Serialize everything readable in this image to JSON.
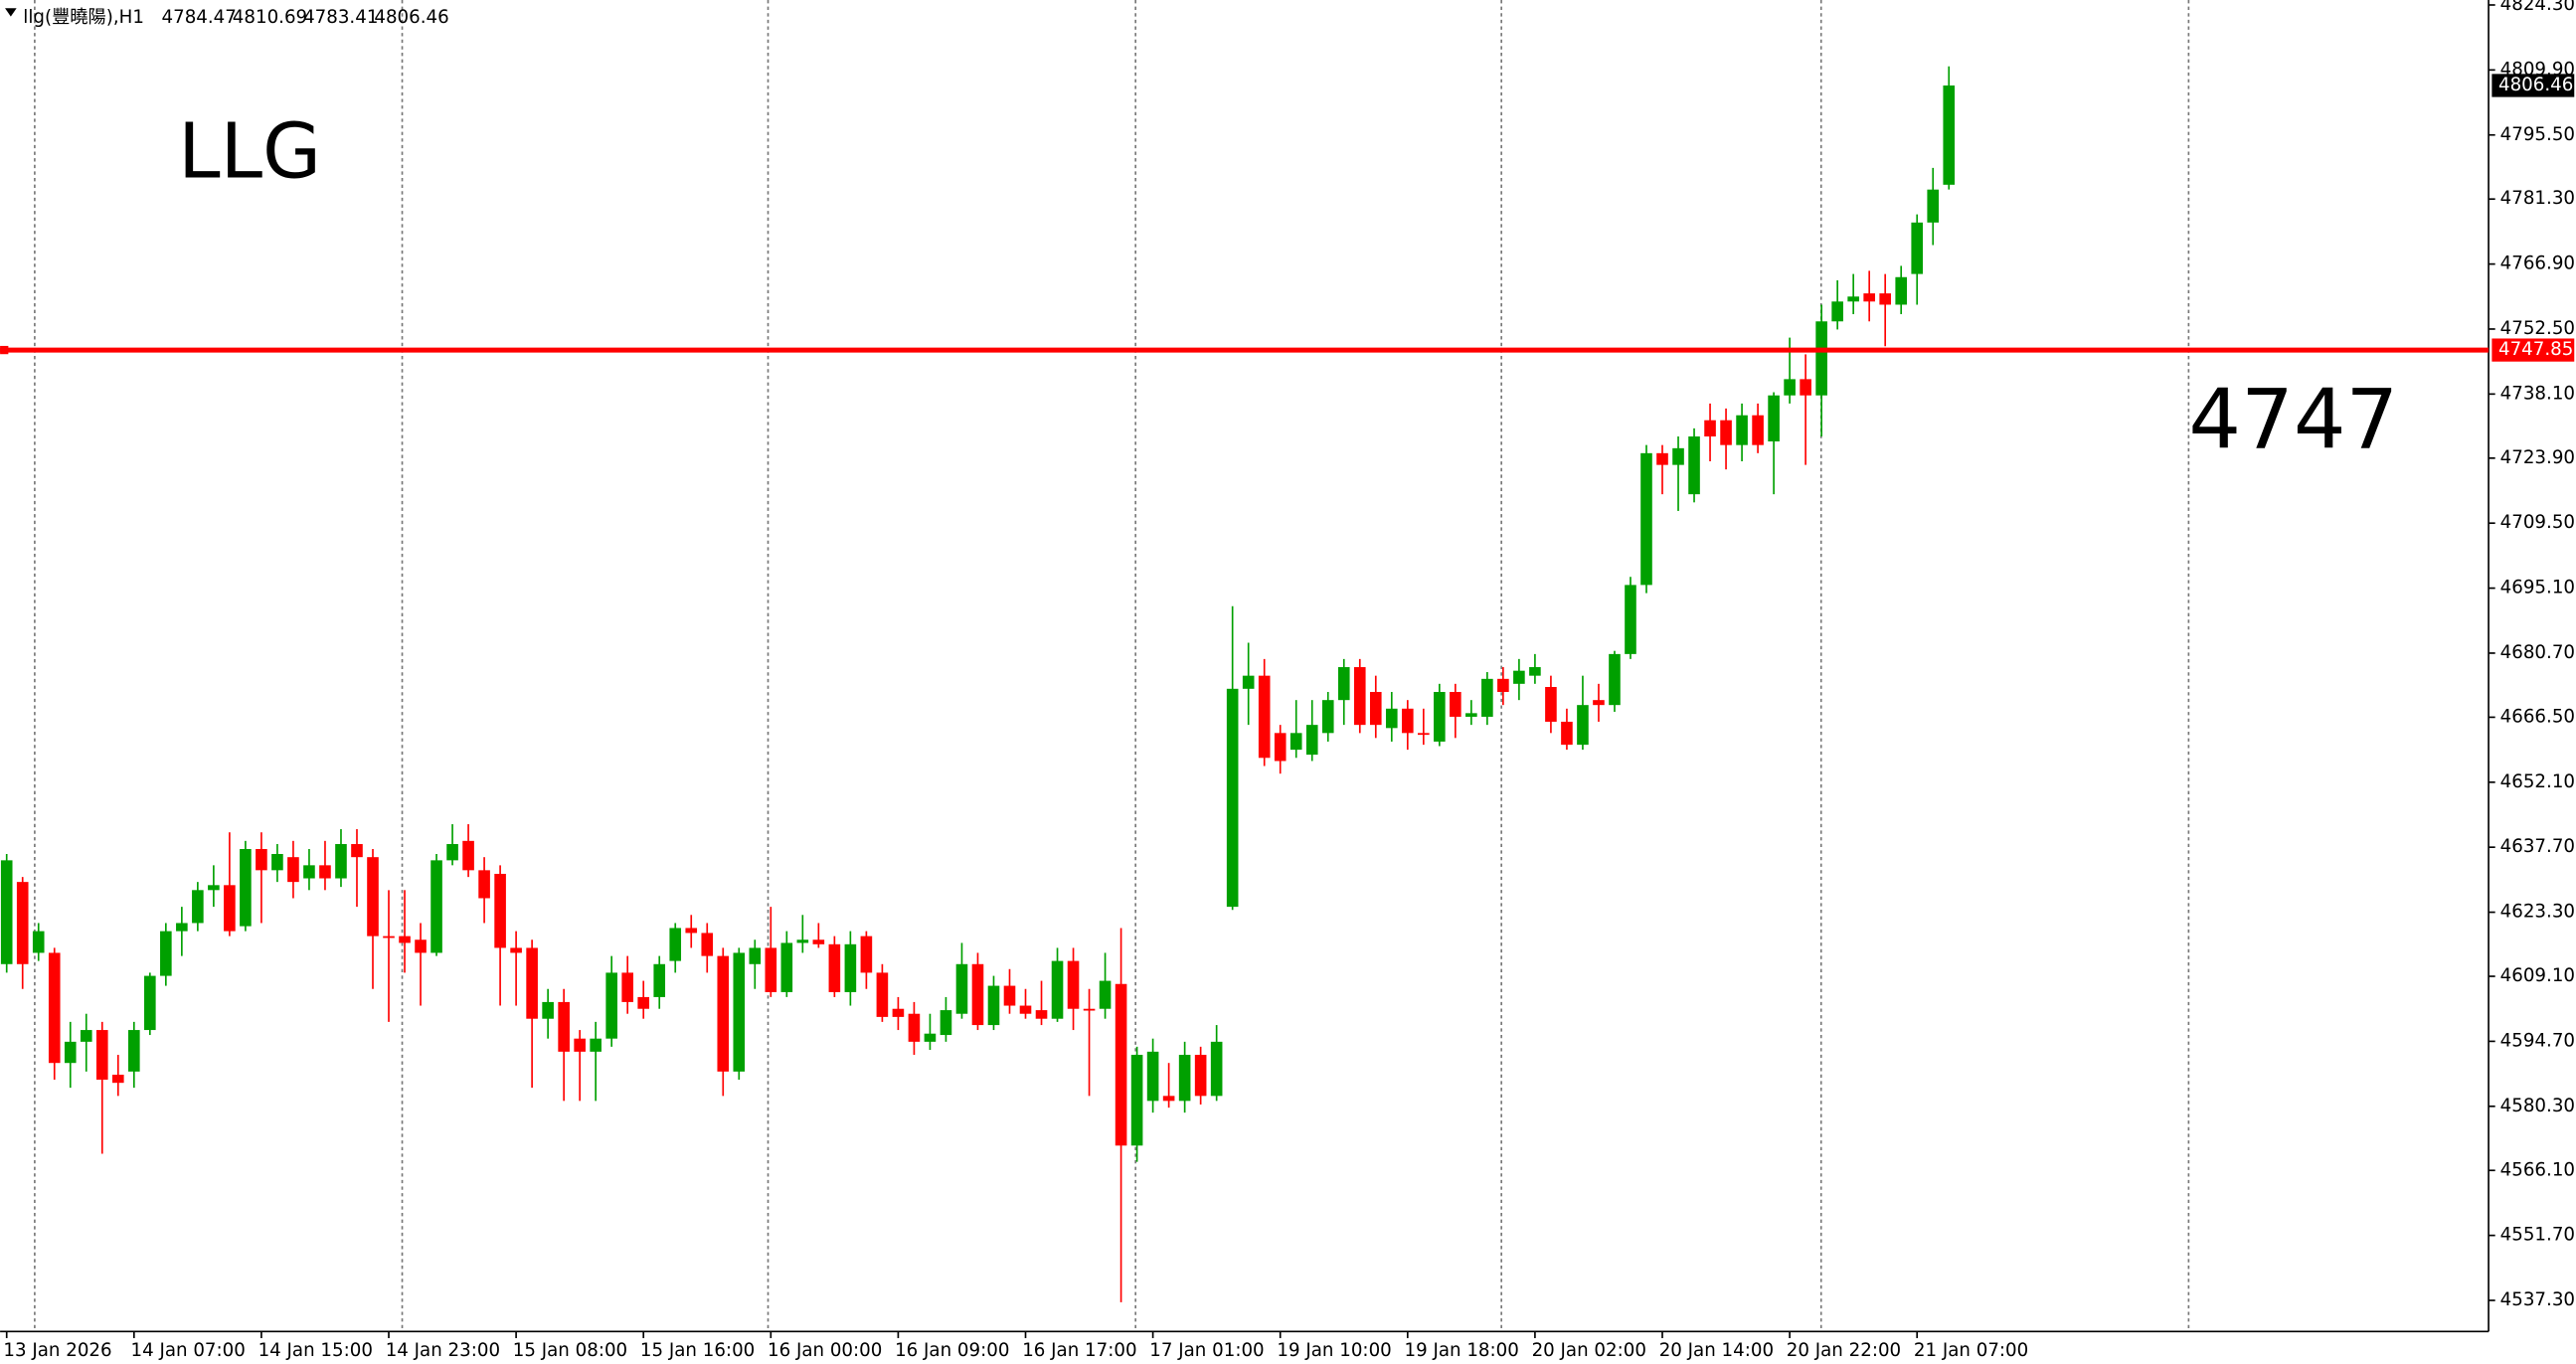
{
  "chart_data": {
    "type": "candlestick",
    "title": "LLG",
    "header": "llg(豐曉陽),H1",
    "annotation": "4747",
    "up_color": "#00a000",
    "down_color": "#ff0000",
    "categories": [
      "13 Jan 2026",
      null,
      null,
      null,
      null,
      null,
      null,
      null,
      "14 Jan 07:00",
      null,
      null,
      null,
      null,
      null,
      null,
      null,
      "14 Jan 15:00",
      null,
      null,
      null,
      null,
      null,
      null,
      null,
      "14 Jan 23:00",
      null,
      null,
      null,
      null,
      null,
      null,
      null,
      "15 Jan 08:00",
      null,
      null,
      null,
      null,
      null,
      null,
      null,
      "15 Jan 16:00",
      null,
      null,
      null,
      null,
      null,
      null,
      null,
      "16 Jan 00:00",
      null,
      null,
      null,
      null,
      null,
      null,
      null,
      "16 Jan 09:00",
      null,
      null,
      null,
      null,
      null,
      null,
      null,
      "16 Jan 17:00",
      null,
      null,
      null,
      null,
      null,
      null,
      null,
      "17 Jan 01:00",
      null,
      null,
      null,
      null,
      null,
      null,
      null,
      "19 Jan 10:00",
      null,
      null,
      null,
      null,
      null,
      null,
      null,
      "19 Jan 18:00",
      null,
      null,
      null,
      null,
      null,
      null,
      null,
      "20 Jan 02:00",
      null,
      null,
      null,
      null,
      null,
      null,
      null,
      "20 Jan 14:00",
      null,
      null,
      null,
      null,
      null,
      null,
      null,
      "20 Jan 22:00",
      null,
      null,
      null,
      null,
      null,
      null,
      null,
      "21 Jan 07:00",
      null,
      null
    ],
    "open": [
      4611.8,
      4630.0,
      4614.3,
      4614.3,
      4589.9,
      4594.6,
      4597.2,
      4587.3,
      4588.0,
      4597.2,
      4609.2,
      4619.1,
      4620.9,
      4628.2,
      4629.3,
      4620.2,
      4637.3,
      4632.6,
      4635.5,
      4630.8,
      4633.7,
      4630.8,
      4638.4,
      4635.5,
      4618.0,
      4618.0,
      4617.2,
      4614.3,
      4634.8,
      4639.1,
      4632.6,
      4631.8,
      4615.4,
      4615.4,
      4599.7,
      4603.4,
      4595.3,
      4592.4,
      4595.3,
      4609.9,
      4604.5,
      4604.5,
      4612.5,
      4619.8,
      4618.7,
      4613.6,
      4588.0,
      4611.8,
      4615.4,
      4605.6,
      4616.5,
      4617.2,
      4616.2,
      4605.6,
      4618.0,
      4609.9,
      4601.9,
      4600.8,
      4594.6,
      4596.1,
      4600.8,
      4611.8,
      4598.3,
      4607.0,
      4602.6,
      4601.6,
      4599.7,
      4612.5,
      4601.9,
      4601.9,
      4607.4,
      4571.6,
      4581.5,
      4582.6,
      4581.5,
      4591.7,
      4582.6,
      4624.5,
      4672.8,
      4675.7,
      4663.0,
      4659.3,
      4658.2,
      4663.0,
      4670.3,
      4677.6,
      4672.1,
      4664.1,
      4668.4,
      4663.0,
      4661.1,
      4672.1,
      4666.6,
      4666.6,
      4675.0,
      4673.9,
      4675.7,
      4673.2,
      4665.5,
      4660.4,
      4670.3,
      4669.2,
      4680.5,
      4695.8,
      4725.0,
      4722.4,
      4715.9,
      4732.3,
      4732.3,
      4726.8,
      4733.4,
      4727.6,
      4737.8,
      4741.4,
      4737.8,
      4754.2,
      4758.6,
      4760.4,
      4760.4,
      4757.9,
      4764.7,
      4776.1,
      4784.47
    ],
    "high": [
      4636.2,
      4631.1,
      4620.9,
      4615.4,
      4599.0,
      4600.8,
      4599.0,
      4591.7,
      4599.0,
      4609.9,
      4620.9,
      4624.5,
      4630.0,
      4633.7,
      4641.0,
      4639.1,
      4641.0,
      4638.4,
      4639.1,
      4637.3,
      4639.1,
      4641.7,
      4641.7,
      4637.3,
      4628.2,
      4628.2,
      4620.9,
      4636.2,
      4642.8,
      4642.8,
      4635.5,
      4633.7,
      4619.1,
      4617.2,
      4606.3,
      4606.3,
      4597.2,
      4599.0,
      4613.6,
      4613.6,
      4608.1,
      4613.6,
      4620.9,
      4622.7,
      4620.9,
      4615.4,
      4615.4,
      4617.2,
      4624.5,
      4619.1,
      4622.7,
      4620.9,
      4618.0,
      4619.1,
      4619.1,
      4611.8,
      4604.5,
      4603.4,
      4600.8,
      4604.5,
      4616.5,
      4614.3,
      4609.2,
      4610.7,
      4606.3,
      4608.1,
      4615.4,
      4615.4,
      4606.3,
      4614.3,
      4619.8,
      4593.5,
      4595.3,
      4589.9,
      4594.6,
      4593.5,
      4598.3,
      4691.1,
      4683.0,
      4679.4,
      4664.8,
      4670.3,
      4670.3,
      4672.1,
      4679.4,
      4679.4,
      4675.7,
      4672.1,
      4670.3,
      4668.4,
      4673.9,
      4673.9,
      4670.3,
      4676.5,
      4677.6,
      4679.4,
      4680.5,
      4675.7,
      4668.4,
      4675.7,
      4673.9,
      4681.2,
      4697.6,
      4726.8,
      4726.8,
      4728.7,
      4730.5,
      4736.0,
      4734.9,
      4736.0,
      4736.0,
      4738.5,
      4750.6,
      4746.9,
      4757.9,
      4763.3,
      4764.7,
      4765.4,
      4764.7,
      4766.5,
      4777.9,
      4788.2,
      4810.69
    ],
    "low": [
      4609.9,
      4606.3,
      4612.5,
      4586.2,
      4584.4,
      4588.0,
      4569.8,
      4582.6,
      4584.4,
      4596.1,
      4607.0,
      4613.6,
      4619.1,
      4624.5,
      4618.0,
      4619.1,
      4620.9,
      4630.0,
      4626.4,
      4628.2,
      4628.2,
      4628.9,
      4624.5,
      4606.3,
      4599.0,
      4609.9,
      4602.6,
      4613.6,
      4633.7,
      4631.1,
      4620.9,
      4602.6,
      4602.6,
      4584.4,
      4595.3,
      4581.5,
      4581.5,
      4581.5,
      4593.5,
      4600.8,
      4599.7,
      4601.9,
      4609.9,
      4615.4,
      4609.9,
      4582.6,
      4586.2,
      4606.3,
      4604.5,
      4604.5,
      4614.3,
      4615.4,
      4604.5,
      4602.6,
      4606.3,
      4599.0,
      4597.2,
      4591.7,
      4592.8,
      4594.6,
      4599.7,
      4597.2,
      4597.2,
      4600.8,
      4599.7,
      4598.3,
      4599.0,
      4597.2,
      4582.6,
      4599.7,
      4536.9,
      4568.0,
      4578.9,
      4580.0,
      4578.9,
      4580.7,
      4581.5,
      4623.8,
      4664.8,
      4655.7,
      4654.0,
      4657.5,
      4656.8,
      4661.1,
      4664.8,
      4663.0,
      4661.9,
      4661.1,
      4659.3,
      4660.4,
      4660.1,
      4661.9,
      4664.8,
      4664.8,
      4669.2,
      4670.3,
      4673.9,
      4663.0,
      4659.3,
      4659.3,
      4665.5,
      4667.7,
      4679.4,
      4694.0,
      4715.9,
      4712.2,
      4714.1,
      4723.2,
      4721.4,
      4723.2,
      4725.0,
      4715.9,
      4736.0,
      4722.4,
      4728.7,
      4752.4,
      4755.8,
      4754.2,
      4748.7,
      4755.8,
      4757.9,
      4771.1,
      4783.41
    ],
    "close": [
      4634.8,
      4611.8,
      4619.1,
      4589.9,
      4594.6,
      4597.2,
      4586.2,
      4585.5,
      4597.2,
      4609.2,
      4619.1,
      4620.9,
      4628.2,
      4629.3,
      4619.1,
      4637.3,
      4632.6,
      4636.2,
      4630.0,
      4633.7,
      4630.8,
      4638.4,
      4635.5,
      4618.0,
      4617.6,
      4616.5,
      4614.3,
      4634.8,
      4638.4,
      4632.6,
      4626.4,
      4615.4,
      4614.3,
      4599.7,
      4603.4,
      4592.4,
      4592.4,
      4595.3,
      4609.9,
      4603.4,
      4601.9,
      4611.8,
      4619.8,
      4618.7,
      4613.6,
      4588.0,
      4614.3,
      4615.4,
      4605.6,
      4616.5,
      4617.2,
      4616.2,
      4605.6,
      4616.2,
      4609.9,
      4600.1,
      4600.1,
      4594.6,
      4596.4,
      4601.6,
      4611.8,
      4598.3,
      4607.0,
      4602.6,
      4600.8,
      4599.7,
      4612.5,
      4601.9,
      4601.5,
      4608.1,
      4571.6,
      4591.7,
      4592.4,
      4581.5,
      4591.7,
      4582.6,
      4594.6,
      4672.8,
      4675.7,
      4657.5,
      4656.8,
      4663.0,
      4664.8,
      4670.3,
      4677.6,
      4664.8,
      4664.8,
      4668.4,
      4663.0,
      4662.6,
      4672.1,
      4666.6,
      4667.4,
      4675.0,
      4672.1,
      4676.8,
      4677.6,
      4665.5,
      4660.4,
      4669.2,
      4669.2,
      4680.5,
      4695.8,
      4725.0,
      4722.4,
      4726.1,
      4728.7,
      4728.7,
      4726.8,
      4733.4,
      4726.8,
      4737.8,
      4741.4,
      4737.8,
      4754.2,
      4758.6,
      4759.7,
      4758.6,
      4757.9,
      4764.0,
      4776.1,
      4783.4,
      4806.46
    ],
    "ylim": [
      4530.4,
      4825.4
    ],
    "yticks": [
      {
        "value": 4824.3,
        "label": "4824.30"
      },
      {
        "value": 4809.9,
        "label": "4809.90"
      },
      {
        "value": 4795.5,
        "label": "4795.50"
      },
      {
        "value": 4781.3,
        "label": "4781.30"
      },
      {
        "value": 4766.9,
        "label": "4766.90"
      },
      {
        "value": 4752.5,
        "label": "4752.50"
      },
      {
        "value": 4738.1,
        "label": "4738.10"
      },
      {
        "value": 4723.9,
        "label": "4723.90"
      },
      {
        "value": 4709.5,
        "label": "4709.50"
      },
      {
        "value": 4695.1,
        "label": "4695.10"
      },
      {
        "value": 4680.7,
        "label": "4680.70"
      },
      {
        "value": 4666.5,
        "label": "4666.50"
      },
      {
        "value": 4652.1,
        "label": "4652.10"
      },
      {
        "value": 4637.7,
        "label": "4637.70"
      },
      {
        "value": 4623.3,
        "label": "4623.30"
      },
      {
        "value": 4609.1,
        "label": "4609.10"
      },
      {
        "value": 4594.7,
        "label": "4594.70"
      },
      {
        "value": 4580.3,
        "label": "4580.30"
      },
      {
        "value": 4566.1,
        "label": "4566.10"
      },
      {
        "value": 4551.7,
        "label": "4551.70"
      },
      {
        "value": 4537.3,
        "label": "4537.30"
      }
    ],
    "hline": {
      "value": 4747.85,
      "color": "#ff0000"
    }
  }
}
